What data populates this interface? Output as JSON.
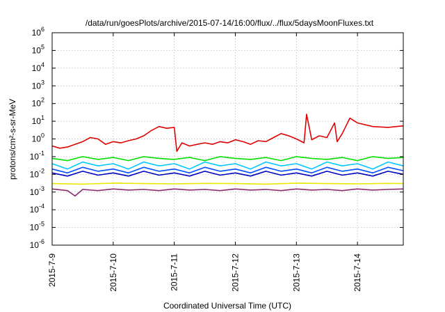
{
  "chart_data": {
    "type": "line",
    "title": "/data/run/goesPlots/archive/2015-07-14/16:00/flux/../flux/5daysMoonFluxes.txt",
    "xlabel": "Coordinated Universal Time (UTC)",
    "ylabel": "protons/cm²-s-sr-MeV",
    "y_scale": "log",
    "ylim": [
      1e-06,
      1000000.0
    ],
    "xlim": [
      "2015-07-09T00:00",
      "2015-07-14T18:00"
    ],
    "grid": true,
    "legend": "none",
    "x_ticks": [
      {
        "date": "2015-07-09T00:00",
        "label": "2015-7-9"
      },
      {
        "date": "2015-07-10T00:00",
        "label": "2015-7-10"
      },
      {
        "date": "2015-07-11T00:00",
        "label": "2015-7-11"
      },
      {
        "date": "2015-07-12T00:00",
        "label": "2015-7-12"
      },
      {
        "date": "2015-07-13T00:00",
        "label": "2015-7-13"
      },
      {
        "date": "2015-07-14T00:00",
        "label": "2015-7-14"
      }
    ],
    "y_ticks": [
      {
        "value": 1e-06,
        "label": "10-6",
        "base": "10",
        "exp": "-6"
      },
      {
        "value": 1e-05,
        "label": "10-5",
        "base": "10",
        "exp": "-5"
      },
      {
        "value": 0.0001,
        "label": "10-4",
        "base": "10",
        "exp": "-4"
      },
      {
        "value": 0.001,
        "label": "10-3",
        "base": "10",
        "exp": "-3"
      },
      {
        "value": 0.01,
        "label": "10-2",
        "base": "10",
        "exp": "-2"
      },
      {
        "value": 0.1,
        "label": "10-1",
        "base": "10",
        "exp": "-1"
      },
      {
        "value": 1,
        "label": "100",
        "base": "10",
        "exp": "0"
      },
      {
        "value": 10,
        "label": "101",
        "base": "10",
        "exp": "1"
      },
      {
        "value": 100,
        "label": "102",
        "base": "10",
        "exp": "2"
      },
      {
        "value": 1000,
        "label": "103",
        "base": "10",
        "exp": "3"
      },
      {
        "value": 10000,
        "label": "104",
        "base": "10",
        "exp": "4"
      },
      {
        "value": 100000,
        "label": "105",
        "base": "10",
        "exp": "5"
      },
      {
        "value": 1000000,
        "label": "106",
        "base": "10",
        "exp": "6"
      }
    ],
    "series": [
      {
        "color": "#e00000",
        "x": [
          "2015-07-09T00:00",
          "2015-07-09T03:00",
          "2015-07-09T06:00",
          "2015-07-09T09:00",
          "2015-07-09T12:00",
          "2015-07-09T15:00",
          "2015-07-09T18:00",
          "2015-07-09T21:00",
          "2015-07-10T00:00",
          "2015-07-10T03:00",
          "2015-07-10T06:00",
          "2015-07-10T09:00",
          "2015-07-10T12:00",
          "2015-07-10T15:00",
          "2015-07-10T18:00",
          "2015-07-10T21:00",
          "2015-07-11T00:00",
          "2015-07-11T01:00",
          "2015-07-11T03:00",
          "2015-07-11T06:00",
          "2015-07-11T09:00",
          "2015-07-11T12:00",
          "2015-07-11T15:00",
          "2015-07-11T18:00",
          "2015-07-11T21:00",
          "2015-07-12T00:00",
          "2015-07-12T03:00",
          "2015-07-12T06:00",
          "2015-07-12T09:00",
          "2015-07-12T12:00",
          "2015-07-12T15:00",
          "2015-07-12T18:00",
          "2015-07-12T21:00",
          "2015-07-13T00:00",
          "2015-07-13T03:00",
          "2015-07-13T04:00",
          "2015-07-13T06:00",
          "2015-07-13T09:00",
          "2015-07-13T12:00",
          "2015-07-13T15:00",
          "2015-07-13T16:00",
          "2015-07-13T18:00",
          "2015-07-13T21:00",
          "2015-07-14T00:00",
          "2015-07-14T06:00",
          "2015-07-14T12:00",
          "2015-07-14T18:00"
        ],
        "y": [
          0.4,
          0.3,
          0.35,
          0.5,
          0.7,
          1.2,
          1.0,
          0.5,
          0.7,
          0.6,
          0.8,
          1.0,
          1.5,
          3.0,
          5.0,
          4.0,
          4.5,
          0.2,
          0.6,
          0.4,
          0.5,
          0.6,
          0.5,
          0.7,
          0.6,
          0.9,
          0.7,
          0.5,
          0.8,
          0.7,
          1.2,
          2.0,
          1.5,
          1.0,
          0.6,
          25,
          0.9,
          1.5,
          1.2,
          8.0,
          0.7,
          2.0,
          15,
          8.0,
          5.0,
          4.5,
          5.5
        ]
      },
      {
        "color": "#00e000",
        "x": [
          "2015-07-09T00:00",
          "2015-07-09T06:00",
          "2015-07-09T12:00",
          "2015-07-09T18:00",
          "2015-07-10T00:00",
          "2015-07-10T06:00",
          "2015-07-10T12:00",
          "2015-07-10T18:00",
          "2015-07-11T00:00",
          "2015-07-11T06:00",
          "2015-07-11T12:00",
          "2015-07-11T18:00",
          "2015-07-12T00:00",
          "2015-07-12T06:00",
          "2015-07-12T12:00",
          "2015-07-12T18:00",
          "2015-07-13T00:00",
          "2015-07-13T06:00",
          "2015-07-13T12:00",
          "2015-07-13T18:00",
          "2015-07-14T00:00",
          "2015-07-14T06:00",
          "2015-07-14T12:00",
          "2015-07-14T18:00"
        ],
        "y": [
          0.08,
          0.06,
          0.1,
          0.07,
          0.09,
          0.06,
          0.1,
          0.08,
          0.07,
          0.09,
          0.06,
          0.1,
          0.08,
          0.07,
          0.09,
          0.06,
          0.1,
          0.08,
          0.07,
          0.09,
          0.06,
          0.1,
          0.08,
          0.09
        ]
      },
      {
        "color": "#00c8ff",
        "x": [
          "2015-07-09T00:00",
          "2015-07-09T06:00",
          "2015-07-09T12:00",
          "2015-07-09T18:00",
          "2015-07-10T00:00",
          "2015-07-10T06:00",
          "2015-07-10T12:00",
          "2015-07-10T18:00",
          "2015-07-11T00:00",
          "2015-07-11T06:00",
          "2015-07-11T12:00",
          "2015-07-11T18:00",
          "2015-07-12T00:00",
          "2015-07-12T06:00",
          "2015-07-12T12:00",
          "2015-07-12T18:00",
          "2015-07-13T00:00",
          "2015-07-13T06:00",
          "2015-07-13T12:00",
          "2015-07-13T18:00",
          "2015-07-14T00:00",
          "2015-07-14T06:00",
          "2015-07-14T12:00",
          "2015-07-14T18:00"
        ],
        "y": [
          0.04,
          0.02,
          0.05,
          0.03,
          0.04,
          0.02,
          0.05,
          0.03,
          0.04,
          0.02,
          0.05,
          0.03,
          0.04,
          0.02,
          0.05,
          0.03,
          0.04,
          0.02,
          0.05,
          0.03,
          0.04,
          0.02,
          0.05,
          0.03
        ]
      },
      {
        "color": "#0050ff",
        "x": [
          "2015-07-09T00:00",
          "2015-07-09T06:00",
          "2015-07-09T12:00",
          "2015-07-09T18:00",
          "2015-07-10T00:00",
          "2015-07-10T06:00",
          "2015-07-10T12:00",
          "2015-07-10T18:00",
          "2015-07-11T00:00",
          "2015-07-11T06:00",
          "2015-07-11T12:00",
          "2015-07-11T18:00",
          "2015-07-12T00:00",
          "2015-07-12T06:00",
          "2015-07-12T12:00",
          "2015-07-12T18:00",
          "2015-07-13T00:00",
          "2015-07-13T06:00",
          "2015-07-13T12:00",
          "2015-07-13T18:00",
          "2015-07-14T00:00",
          "2015-07-14T06:00",
          "2015-07-14T12:00",
          "2015-07-14T18:00"
        ],
        "y": [
          0.02,
          0.012,
          0.025,
          0.015,
          0.02,
          0.012,
          0.025,
          0.015,
          0.02,
          0.012,
          0.025,
          0.015,
          0.02,
          0.012,
          0.025,
          0.015,
          0.02,
          0.012,
          0.025,
          0.015,
          0.02,
          0.012,
          0.025,
          0.016
        ]
      },
      {
        "color": "#0000c0",
        "x": [
          "2015-07-09T00:00",
          "2015-07-09T06:00",
          "2015-07-09T12:00",
          "2015-07-09T18:00",
          "2015-07-10T00:00",
          "2015-07-10T06:00",
          "2015-07-10T12:00",
          "2015-07-10T18:00",
          "2015-07-11T00:00",
          "2015-07-11T06:00",
          "2015-07-11T12:00",
          "2015-07-11T18:00",
          "2015-07-12T00:00",
          "2015-07-12T06:00",
          "2015-07-12T12:00",
          "2015-07-12T18:00",
          "2015-07-13T00:00",
          "2015-07-13T06:00",
          "2015-07-13T12:00",
          "2015-07-13T18:00",
          "2015-07-14T00:00",
          "2015-07-14T06:00",
          "2015-07-14T12:00",
          "2015-07-14T18:00"
        ],
        "y": [
          0.012,
          0.008,
          0.015,
          0.009,
          0.012,
          0.008,
          0.015,
          0.009,
          0.012,
          0.008,
          0.015,
          0.009,
          0.012,
          0.008,
          0.015,
          0.009,
          0.012,
          0.008,
          0.015,
          0.009,
          0.012,
          0.008,
          0.015,
          0.01
        ]
      },
      {
        "color": "#e8e800",
        "x": [
          "2015-07-09T00:00",
          "2015-07-09T12:00",
          "2015-07-10T00:00",
          "2015-07-10T12:00",
          "2015-07-11T00:00",
          "2015-07-11T12:00",
          "2015-07-12T00:00",
          "2015-07-12T12:00",
          "2015-07-13T00:00",
          "2015-07-13T12:00",
          "2015-07-14T00:00",
          "2015-07-14T12:00",
          "2015-07-14T18:00"
        ],
        "y": [
          0.003,
          0.0028,
          0.0032,
          0.003,
          0.0029,
          0.0031,
          0.003,
          0.0028,
          0.0032,
          0.003,
          0.0029,
          0.0031,
          0.003
        ]
      },
      {
        "color": "#8b2a6b",
        "x": [
          "2015-07-09T00:00",
          "2015-07-09T06:00",
          "2015-07-09T09:00",
          "2015-07-09T12:00",
          "2015-07-09T18:00",
          "2015-07-10T00:00",
          "2015-07-10T06:00",
          "2015-07-10T12:00",
          "2015-07-10T18:00",
          "2015-07-11T00:00",
          "2015-07-11T06:00",
          "2015-07-11T12:00",
          "2015-07-11T18:00",
          "2015-07-12T00:00",
          "2015-07-12T06:00",
          "2015-07-12T12:00",
          "2015-07-12T18:00",
          "2015-07-13T00:00",
          "2015-07-13T06:00",
          "2015-07-13T12:00",
          "2015-07-13T18:00",
          "2015-07-14T00:00",
          "2015-07-14T06:00",
          "2015-07-14T12:00",
          "2015-07-14T18:00"
        ],
        "y": [
          0.0015,
          0.0012,
          0.0006,
          0.0014,
          0.0012,
          0.0015,
          0.0013,
          0.0014,
          0.0012,
          0.0015,
          0.0013,
          0.0014,
          0.0012,
          0.0015,
          0.0013,
          0.0014,
          0.0012,
          0.0015,
          0.0013,
          0.0014,
          0.0012,
          0.0015,
          0.0013,
          0.0014,
          0.0015
        ]
      }
    ]
  }
}
